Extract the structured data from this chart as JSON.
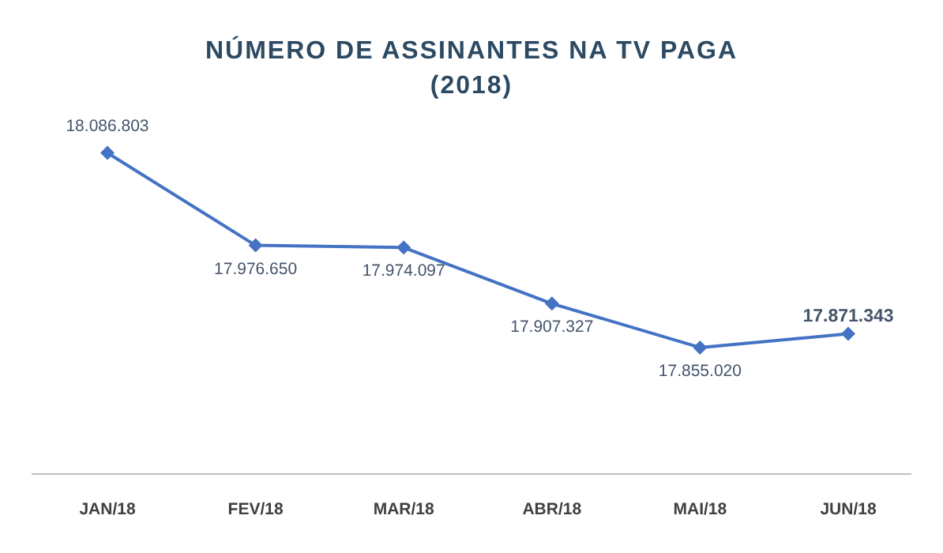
{
  "chart_data": {
    "type": "line",
    "title": "NÚMERO DE ASSINANTES NA TV PAGA",
    "subtitle": "(2018)",
    "categories": [
      "JAN/18",
      "FEV/18",
      "MAR/18",
      "ABR/18",
      "MAI/18",
      "JUN/18"
    ],
    "series": [
      {
        "color": "#4472c4",
        "values": [
          18086803,
          17976650,
          17974097,
          17907327,
          17855020,
          17871343
        ],
        "value_labels": [
          "18.086.803",
          "17.976.650",
          "17.974.097",
          "17.907.327",
          "17.855.020",
          "17.871.343"
        ]
      }
    ],
    "marker": "diamond",
    "grid": false,
    "legend": false
  }
}
